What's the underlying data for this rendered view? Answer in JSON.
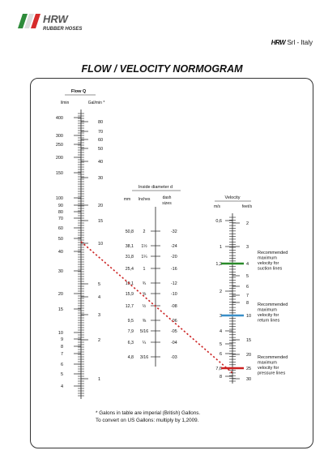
{
  "brand": {
    "logo_text": "HRW",
    "logo_subtitle": "RUBBER HOSES",
    "company_mark": "HRW",
    "company_suffix": "Srl - Italy",
    "stripe_colors": [
      "#2e8b3a",
      "#e8e8e8",
      "#d62b2b"
    ]
  },
  "title": "FLOW / VELOCITY NORMOGRAM",
  "flow": {
    "header": "Flow Q",
    "col_lmin": "l/min",
    "col_gal": "Gal/min *",
    "lmin_labels": [
      "400",
      "300",
      "250",
      "200",
      "150",
      "100",
      "90",
      "80",
      "70",
      "60",
      "50",
      "40",
      "30",
      "20",
      "15",
      "10",
      "9",
      "8",
      "7",
      "6",
      "5",
      "4"
    ],
    "gal_labels": [
      "80",
      "70",
      "60",
      "50",
      "40",
      "30",
      "20",
      "15",
      "10",
      "5",
      "4",
      "3",
      "2",
      "1"
    ]
  },
  "diameter": {
    "header": "Inside diameter d",
    "col_mm": "mm",
    "col_inches": "Inches",
    "col_dash": "dash sizes",
    "rows": [
      {
        "mm": "50,8",
        "inch": "2",
        "dash": "-32"
      },
      {
        "mm": "38,1",
        "inch": "1½",
        "dash": "-24"
      },
      {
        "mm": "31,8",
        "inch": "1¼",
        "dash": "-20"
      },
      {
        "mm": "25,4",
        "inch": "1",
        "dash": "-16"
      },
      {
        "mm": "19,1",
        "inch": "¾",
        "dash": "-12"
      },
      {
        "mm": "15,9",
        "inch": "⅝",
        "dash": "-10"
      },
      {
        "mm": "12,7",
        "inch": "½",
        "dash": "-08"
      },
      {
        "mm": "9,5",
        "inch": "⅜",
        "dash": "-06"
      },
      {
        "mm": "7,9",
        "inch": "5/16",
        "dash": "-05"
      },
      {
        "mm": "6,3",
        "inch": "¼",
        "dash": "-04"
      },
      {
        "mm": "4,8",
        "inch": "3/16",
        "dash": "-03"
      }
    ]
  },
  "velocity": {
    "header": "Velocity",
    "col_ms": "m/s",
    "col_fts": "feet/s",
    "ms_labels": [
      "0,6",
      "1",
      "1,2",
      "2",
      "3",
      "4",
      "5",
      "6",
      "7,6",
      "8"
    ],
    "fts_labels": [
      "2",
      "3",
      "4",
      "5",
      "6",
      "7",
      "8",
      "10",
      "15",
      "20",
      "25",
      "30"
    ]
  },
  "recommendations": [
    {
      "text": "Recommended maximum velocity for suction lines",
      "color": "#2a8a2a"
    },
    {
      "text": "Recommended maximum velocity for return lines",
      "color": "#3a8fc8"
    },
    {
      "text": "Recommended maximum velocity for pressure lines",
      "color": "#cc2222"
    }
  ],
  "example_line_color": "#cc2222",
  "footnote": {
    "line1": "* Galons in table are imperial (British) Gallons.",
    "line2": "To convert on US Gallons: multiply by 1,2009."
  }
}
